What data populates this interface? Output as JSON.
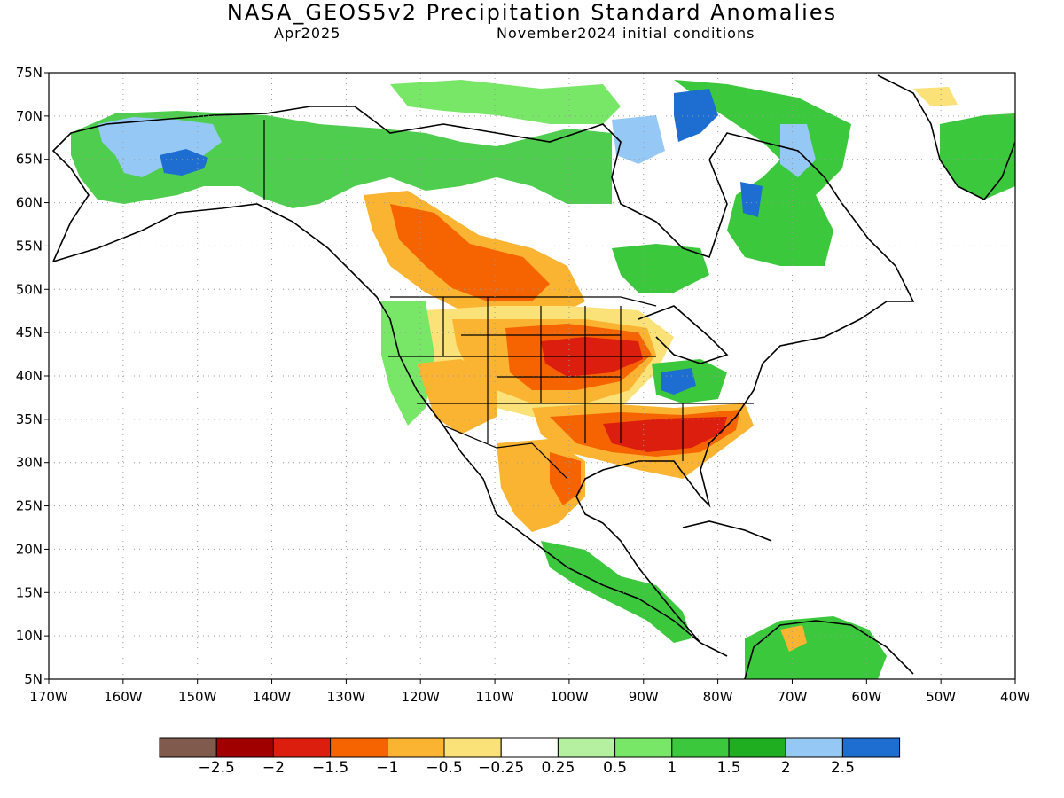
{
  "header": {
    "title": "NASA_GEOS5v2 Precipitation Standard Anomalies",
    "valid_month": "Apr2025",
    "init_label": "November2024 initial conditions"
  },
  "axes": {
    "lat_labels": [
      "75N",
      "70N",
      "65N",
      "60N",
      "55N",
      "50N",
      "45N",
      "40N",
      "35N",
      "30N",
      "25N",
      "20N",
      "15N",
      "10N",
      "5N"
    ],
    "lon_labels": [
      "170W",
      "160W",
      "150W",
      "140W",
      "130W",
      "120W",
      "110W",
      "100W",
      "90W",
      "80W",
      "70W",
      "60W",
      "50W",
      "40W"
    ]
  },
  "colorbar": {
    "colors": [
      "#7f5a4d",
      "#a00000",
      "#dc1e0f",
      "#f56400",
      "#fab432",
      "#fae178",
      "#ffffff",
      "#b4f0a0",
      "#78e666",
      "#3cc83c",
      "#1fae1f",
      "#96c8f5",
      "#1e6ed2"
    ],
    "labels": [
      "-2.5",
      "-2",
      "-1.5",
      "-1",
      "-0.5",
      "-0.25",
      "0.25",
      "0.5",
      "1",
      "1.5",
      "2",
      "2.5"
    ]
  },
  "regions": [
    {
      "name": "alaska-wet",
      "color": "#3cc83c"
    },
    {
      "name": "alaska-very-wet",
      "color": "#96c8f5"
    },
    {
      "name": "canada-wet",
      "color": "#3cc83c"
    },
    {
      "name": "hudson-bay-very-wet",
      "color": "#1e6ed2"
    },
    {
      "name": "prairies-dry",
      "color": "#f56400"
    },
    {
      "name": "central-plains-dry",
      "color": "#dc1e0f"
    },
    {
      "name": "southeast-dry",
      "color": "#dc1e0f"
    },
    {
      "name": "ohio-valley-wet",
      "color": "#1e6ed2"
    },
    {
      "name": "greenland-wet",
      "color": "#3cc83c"
    },
    {
      "name": "mexico-dry",
      "color": "#fab432"
    },
    {
      "name": "central-america-wet",
      "color": "#3cc83c"
    },
    {
      "name": "south-america-wet",
      "color": "#3cc83c"
    }
  ]
}
